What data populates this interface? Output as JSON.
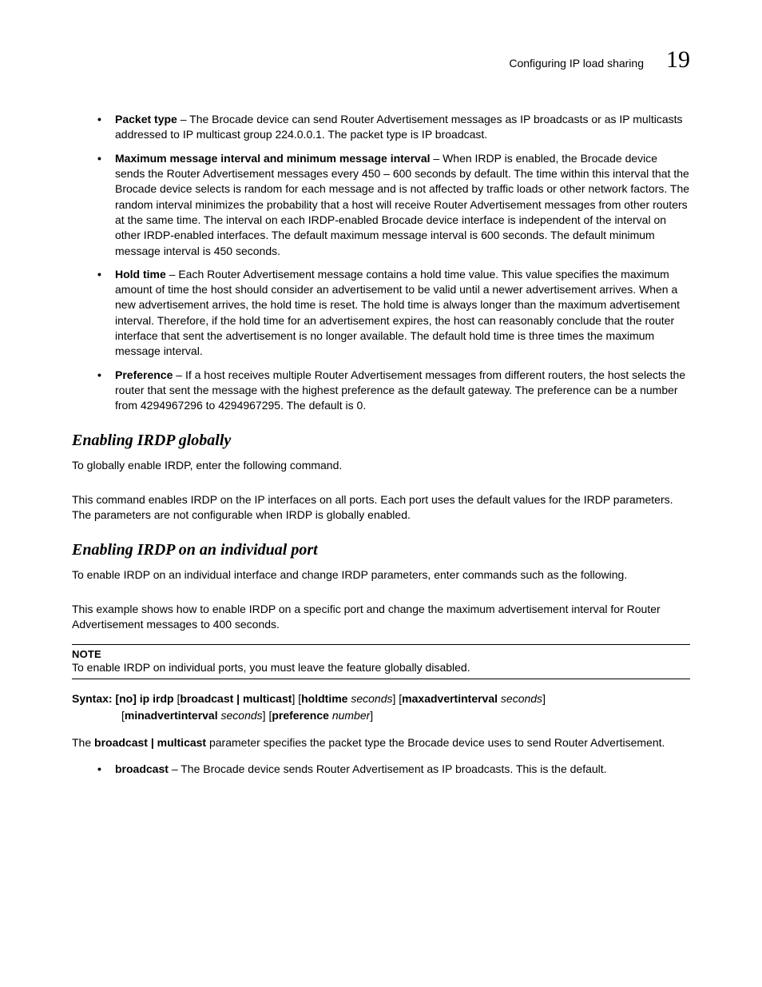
{
  "header": {
    "title": "Configuring IP load sharing",
    "chapter_number": "19"
  },
  "top_bullets": [
    {
      "term": "Packet type",
      "text": "– The Brocade device can send Router Advertisement messages as IP broadcasts or as IP multicasts addressed to IP multicast group 224.0.0.1. The packet type is IP broadcast."
    },
    {
      "term": "Maximum message interval and minimum message interval",
      "text": "– When IRDP is enabled, the Brocade device sends the Router Advertisement messages every 450 – 600 seconds by default. The time within this interval that the Brocade device selects is random for each message and is not affected by traffic loads or other network factors. The random interval minimizes the probability that a host will receive Router Advertisement messages from other routers at the same time. The interval on each IRDP-enabled Brocade device interface is independent of the interval on other IRDP-enabled interfaces.  The default maximum message interval is 600 seconds. The default minimum message interval is 450 seconds."
    },
    {
      "term": "Hold time",
      "text": "– Each Router Advertisement message contains a hold time value. This value specifies the maximum amount of time the host should consider an advertisement to be valid until a newer advertisement arrives. When a new advertisement arrives, the hold time is reset. The hold time is always longer than the maximum advertisement interval. Therefore, if the hold time for an advertisement expires, the host can reasonably conclude that the router interface that sent the advertisement is no longer available. The default hold time is three times the maximum message interval."
    },
    {
      "term": "Preference",
      "text": "– If a host receives multiple Router Advertisement messages from different routers, the host selects the router that sent the message with the highest preference as the default gateway. The preference can be a number from 4294967296 to 4294967295. The default is 0."
    }
  ],
  "section1": {
    "heading": "Enabling IRDP globally",
    "p1": "To globally enable IRDP, enter the following command.",
    "p2": "This command enables IRDP on the IP interfaces on all ports. Each port uses the default values for the IRDP parameters. The parameters are not configurable when IRDP is globally enabled."
  },
  "section2": {
    "heading": "Enabling IRDP on an individual port",
    "p1": "To enable IRDP on an individual interface and change IRDP parameters, enter commands such as the following.",
    "p2": "This example shows how to enable IRDP on a specific port and change the maximum advertisement interval for Router Advertisement messages to 400 seconds.",
    "note_label": "NOTE",
    "note_text": "To enable IRDP on individual ports, you must leave the feature globally disabled.",
    "syntax": {
      "label": "Syntax:",
      "no": "[no]",
      "cmd": "ip irdp",
      "opt1": "broadcast | multicast",
      "opt2": "holdtime",
      "arg2": "seconds",
      "opt3": "maxadvertinterval",
      "arg3": "seconds",
      "opt4": "minadvertinterval",
      "arg4": "seconds",
      "opt5": "preference",
      "arg5": "number"
    },
    "p3_pre": "The ",
    "p3_bold": "broadcast | multicast",
    "p3_post": " parameter specifies the packet type the Brocade device uses to send Router Advertisement.",
    "bullet": {
      "term": "broadcast",
      "text": "– The Brocade device sends Router Advertisement as IP broadcasts. This is the default."
    }
  }
}
